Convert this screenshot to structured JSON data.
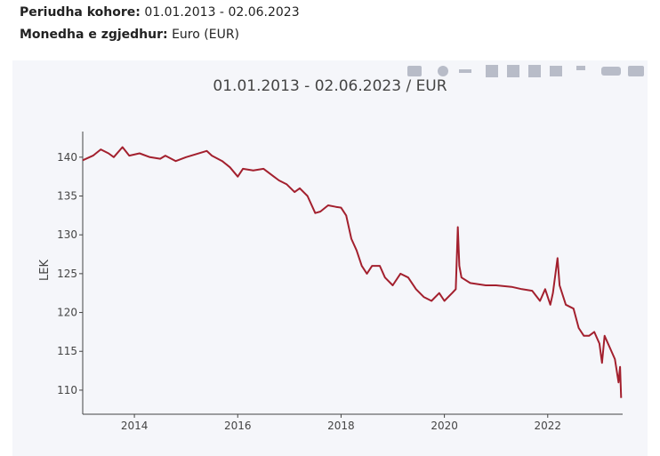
{
  "header": {
    "period_label": "Periudha kohore:",
    "period_value": "01.01.2013 - 02.06.2023",
    "currency_label": "Monedha e zgjedhur:",
    "currency_value": "Euro (EUR)"
  },
  "chart_data": {
    "type": "line",
    "title": "01.01.2013 - 02.06.2023 / EUR",
    "y_label": "LEK",
    "x": [
      2013.0,
      2013.2,
      2013.35,
      2013.5,
      2013.6,
      2013.77,
      2013.9,
      2014.1,
      2014.3,
      2014.5,
      2014.6,
      2014.8,
      2015.0,
      2015.2,
      2015.4,
      2015.5,
      2015.7,
      2015.85,
      2016.0,
      2016.1,
      2016.3,
      2016.5,
      2016.7,
      2016.8,
      2016.95,
      2017.1,
      2017.2,
      2017.35,
      2017.5,
      2017.6,
      2017.75,
      2017.9,
      2018.0,
      2018.1,
      2018.2,
      2018.3,
      2018.4,
      2018.5,
      2018.6,
      2018.75,
      2018.85,
      2019.0,
      2019.15,
      2019.3,
      2019.45,
      2019.6,
      2019.75,
      2019.9,
      2020.0,
      2020.15,
      2020.22,
      2020.26,
      2020.29,
      2020.33,
      2020.5,
      2020.8,
      2021.0,
      2021.3,
      2021.5,
      2021.7,
      2021.85,
      2021.95,
      2022.05,
      2022.1,
      2022.19,
      2022.23,
      2022.35,
      2022.5,
      2022.6,
      2022.7,
      2022.8,
      2022.9,
      2023.0,
      2023.05,
      2023.1,
      2023.2,
      2023.3,
      2023.37,
      2023.4,
      2023.42
    ],
    "series": [
      {
        "name": "EUR",
        "color": "#a3202e",
        "values": [
          139.6,
          140.2,
          141.0,
          140.5,
          140.0,
          141.3,
          140.2,
          140.5,
          140.0,
          139.8,
          140.2,
          139.5,
          140.0,
          140.4,
          140.8,
          140.2,
          139.5,
          138.7,
          137.5,
          138.5,
          138.3,
          138.5,
          137.5,
          137.0,
          136.5,
          135.5,
          136.0,
          135.0,
          132.8,
          133.0,
          133.8,
          133.6,
          133.5,
          132.5,
          129.5,
          128.0,
          126.0,
          125.0,
          126.0,
          126.0,
          124.5,
          123.5,
          125.0,
          124.5,
          123.0,
          122.0,
          121.5,
          122.5,
          121.5,
          122.5,
          123.0,
          131.0,
          126.0,
          124.5,
          123.8,
          123.5,
          123.5,
          123.3,
          123.0,
          122.8,
          121.5,
          123.0,
          121.0,
          122.5,
          127.0,
          123.5,
          121.0,
          120.5,
          118.0,
          117.0,
          117.0,
          117.5,
          116.0,
          113.5,
          117.0,
          115.5,
          114.0,
          111.0,
          113.0,
          109.0
        ]
      }
    ],
    "xlim": [
      2013.0,
      2023.45
    ],
    "ylim": [
      106.9,
      143.3
    ],
    "xticks": [
      2014,
      2016,
      2018,
      2020,
      2022
    ],
    "yticks": [
      110,
      115,
      120,
      125,
      130,
      135,
      140
    ]
  }
}
